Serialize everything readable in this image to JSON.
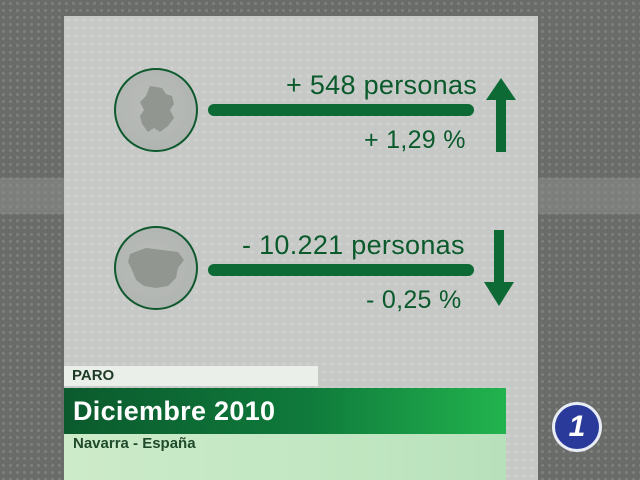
{
  "navarra": {
    "change_people": "+ 548 personas",
    "change_percent": "+ 1,29 %",
    "trend": "up"
  },
  "espana": {
    "change_people": "- 10.221 personas",
    "change_percent": "- 0,25 %",
    "trend": "down"
  },
  "lower_third": {
    "label": "PARO",
    "title": "Diciembre 2010",
    "subtitle": "Navarra - España"
  },
  "logo": {
    "text": "1"
  },
  "colors": {
    "accent_green": "#0d6a34",
    "panel": "#c7c9c7",
    "logo_blue": "#2a3a9a"
  },
  "icons": [
    "navarra-map-icon",
    "spain-map-icon",
    "up-arrow-icon",
    "down-arrow-icon",
    "tve1-logo-icon"
  ]
}
